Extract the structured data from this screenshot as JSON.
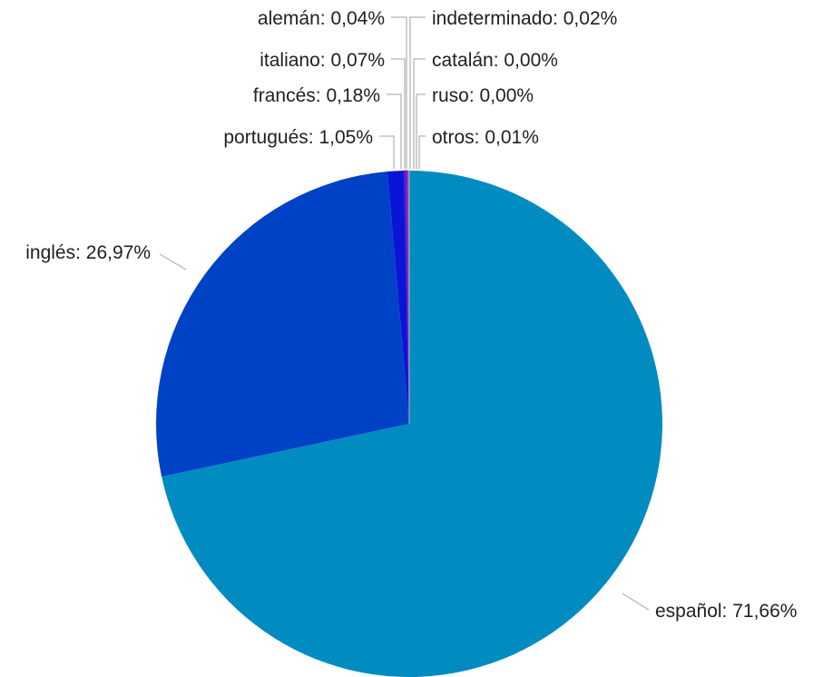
{
  "chart_data": {
    "type": "pie",
    "title": "",
    "legend": "none",
    "slices": [
      {
        "name": "español",
        "label": "español: 71,66%",
        "value": 71.66,
        "color": "#008cc0"
      },
      {
        "name": "inglés",
        "label": "inglés: 26,97%",
        "value": 26.97,
        "color": "#0042c6"
      },
      {
        "name": "portugués",
        "label": "portugués: 1,05%",
        "value": 1.05,
        "color": "#0a14d6"
      },
      {
        "name": "francés",
        "label": "francés: 0,18%",
        "value": 0.18,
        "color": "#5a1fd0"
      },
      {
        "name": "italiano",
        "label": "italiano: 0,07%",
        "value": 0.07,
        "color": "#8a2fd0"
      },
      {
        "name": "alemán",
        "label": "alemán: 0,04%",
        "value": 0.04,
        "color": "#c02ea0"
      },
      {
        "name": "indeterminado",
        "label": "indeterminado: 0,02%",
        "value": 0.02,
        "color": "#555555"
      },
      {
        "name": "catalán",
        "label": "catalán: 0,00%",
        "value": 0.004,
        "color": "#777777"
      },
      {
        "name": "ruso",
        "label": "ruso: 0,00%",
        "value": 0.004,
        "color": "#999999"
      },
      {
        "name": "otros",
        "label": "otros: 0,01%",
        "value": 0.01,
        "color": "#bbbbbb"
      }
    ]
  }
}
